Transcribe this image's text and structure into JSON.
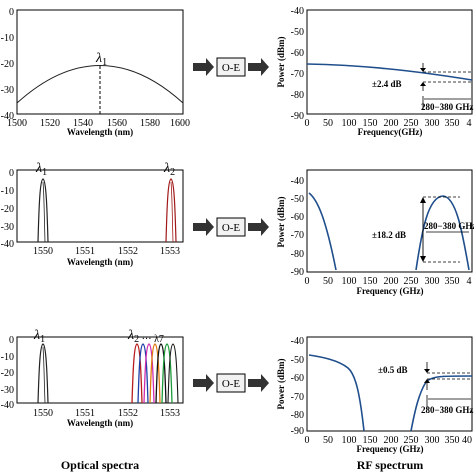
{
  "captions": {
    "left": "Optical spectra",
    "right": "RF spectrum"
  },
  "converter_label": "O-E",
  "colors": {
    "optical_black": "#222222",
    "optical_red": "#a01818",
    "rf_blue": "#1f4e8c",
    "wdm_colors": [
      "#b81d1d",
      "#1f3fa8",
      "#cf2fb0",
      "#e07a10",
      "#111111",
      "#1d9a3a",
      "#1a1a1a"
    ]
  },
  "chart_data": [
    {
      "type": "line",
      "panel": "optical-1",
      "xlabel": "Wavelength (nm)",
      "ylabel": "",
      "xlim": [
        1500,
        1600
      ],
      "ylim": [
        -40,
        0
      ],
      "xticks": [
        "1500",
        "1520",
        "1540",
        "1560",
        "1580",
        "1600"
      ],
      "yticks": [
        "0",
        "-10",
        "-20",
        "-30",
        "-40"
      ],
      "annotations": [
        {
          "text": "λ",
          "sub": "1"
        }
      ],
      "series": [
        {
          "shape": "parabola",
          "peak_x": 1550,
          "peak_y": -18,
          "edge_y": -37
        }
      ]
    },
    {
      "type": "line",
      "panel": "rf-1",
      "xlabel": "Frequency(GHz)",
      "ylabel": "Power (dBm)",
      "xlim": [
        0,
        400
      ],
      "ylim": [
        -90,
        -40
      ],
      "xticks": [
        "0",
        "50",
        "100",
        "150",
        "200",
        "250",
        "300",
        "350",
        "4"
      ],
      "yticks": [
        "-40",
        "-50",
        "-60",
        "-70",
        "-80",
        "-90"
      ],
      "annotations": [
        {
          "text": "±2.4 dB"
        },
        {
          "text": "280−380 GHz"
        }
      ],
      "series": [
        {
          "shape": "gentle-decline",
          "x": [
            0,
            100,
            200,
            280,
            330,
            380,
            400
          ],
          "y": [
            -63,
            -63.5,
            -64.5,
            -65.5,
            -66.5,
            -67.8,
            -68.5
          ]
        }
      ]
    },
    {
      "type": "line",
      "panel": "optical-2",
      "xlabel": "Wavelength (nm)",
      "ylabel": "",
      "xlim": [
        1549.6,
        1553.4
      ],
      "ylim": [
        -40,
        0
      ],
      "xticks": [
        "1550",
        "1551",
        "1552",
        "1553"
      ],
      "yticks": [
        "0",
        "-10",
        "-20",
        "-30",
        "-40"
      ],
      "annotations": [
        {
          "text": "λ",
          "sub": "1"
        },
        {
          "text": "λ",
          "sub": "2"
        }
      ],
      "series": [
        {
          "peak_x": 1549.92,
          "peak_y": -5,
          "color_key": "optical_black"
        },
        {
          "peak_x": 1552.68,
          "peak_y": -5,
          "color_key": "optical_red"
        }
      ]
    },
    {
      "type": "line",
      "panel": "rf-2",
      "xlabel": "Frequency (GHz)",
      "ylabel": "Power (dBm)",
      "xlim": [
        0,
        400
      ],
      "ylim": [
        -90,
        -35
      ],
      "xticks": [
        "0",
        "50",
        "100",
        "150",
        "200",
        "250",
        "300",
        "350",
        "4"
      ],
      "yticks": [
        "-40",
        "-50",
        "-60",
        "-70",
        "-80",
        "-90"
      ],
      "annotations": [
        {
          "text": "±18.2 dB"
        },
        {
          "text": "280−380 GHz"
        }
      ],
      "series": [
        {
          "shape": "lowpass",
          "x": [
            0,
            20,
            50,
            80,
            90
          ],
          "y": [
            -47,
            -52,
            -64,
            -82,
            -90
          ]
        },
        {
          "shape": "bandpass",
          "x": [
            270,
            290,
            330,
            370,
            395
          ],
          "y": [
            -90,
            -60,
            -47,
            -60,
            -90
          ]
        }
      ]
    },
    {
      "type": "line",
      "panel": "optical-3",
      "xlabel": "Wavelength (nm)",
      "ylabel": "",
      "xlim": [
        1549.6,
        1553.4
      ],
      "ylim": [
        -40,
        0
      ],
      "xticks": [
        "1550",
        "1551",
        "1552",
        "1553"
      ],
      "yticks": [
        "0",
        "-10",
        "-20",
        "-30",
        "-40"
      ],
      "annotations": [
        {
          "text": "λ",
          "sub": "1"
        },
        {
          "text": "λ",
          "sub": "2 ··· λ7"
        }
      ],
      "series": [
        {
          "peak_x": 1549.92,
          "peak_y": -5
        },
        {
          "peak_x": 1552.3,
          "peak_y": -5
        },
        {
          "peak_x": 1552.45,
          "peak_y": -5
        },
        {
          "peak_x": 1552.6,
          "peak_y": -5
        },
        {
          "peak_x": 1552.75,
          "peak_y": -5
        },
        {
          "peak_x": 1552.9,
          "peak_y": -5
        },
        {
          "peak_x": 1553.05,
          "peak_y": -5
        }
      ]
    },
    {
      "type": "line",
      "panel": "rf-3",
      "xlabel": "Frequency (GHz)",
      "ylabel": "Power (dBm)",
      "xlim": [
        0,
        400
      ],
      "ylim": [
        -90,
        -40
      ],
      "xticks": [
        "0",
        "50",
        "100",
        "150",
        "200",
        "250",
        "300",
        "350",
        "40"
      ],
      "yticks": [
        "-40",
        "-50",
        "-60",
        "-70",
        "-80",
        "-90"
      ],
      "annotations": [
        {
          "text": "±0.5 dB"
        },
        {
          "text": "280−380 GHz"
        }
      ],
      "series": [
        {
          "shape": "lowpass",
          "x": [
            0,
            40,
            80,
            110,
            125,
            135
          ],
          "y": [
            -50,
            -52,
            -56,
            -66,
            -80,
            -90
          ]
        },
        {
          "shape": "flat-band",
          "x": [
            255,
            270,
            285,
            300,
            400
          ],
          "y": [
            -90,
            -75,
            -61,
            -59,
            -59
          ]
        }
      ]
    }
  ]
}
